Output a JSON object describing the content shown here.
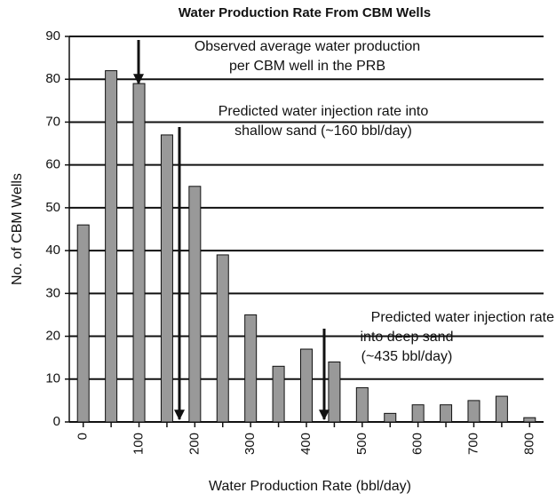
{
  "chart_data": {
    "type": "bar",
    "title": "Water Production Rate From CBM Wells",
    "x_label": "Water Production Rate (bbl/day)",
    "y_label": "No. of CBM Wells",
    "categories": [
      "0",
      null,
      "100",
      null,
      "200",
      null,
      "300",
      null,
      "400",
      null,
      "500",
      null,
      "600",
      null,
      "700",
      null,
      "800"
    ],
    "values": [
      46,
      82,
      79,
      67,
      55,
      39,
      25,
      13,
      17,
      14,
      8,
      2,
      4,
      4,
      5,
      6,
      1
    ],
    "color": "#999999",
    "ylim": [
      0,
      90
    ],
    "yticks": [
      0,
      10,
      20,
      30,
      40,
      50,
      60,
      70,
      80,
      90
    ],
    "grid": true,
    "annotations": [
      {
        "lines": [
          "Observed average water production",
          "per CBM well in the PRB"
        ]
      },
      {
        "lines": [
          "Predicted water injection rate into",
          "shallow sand (~160 bbl/day)"
        ]
      },
      {
        "lines": [
          "Predicted water injection rate",
          "into deep sand",
          "(~435 bbl/day)"
        ]
      }
    ]
  }
}
